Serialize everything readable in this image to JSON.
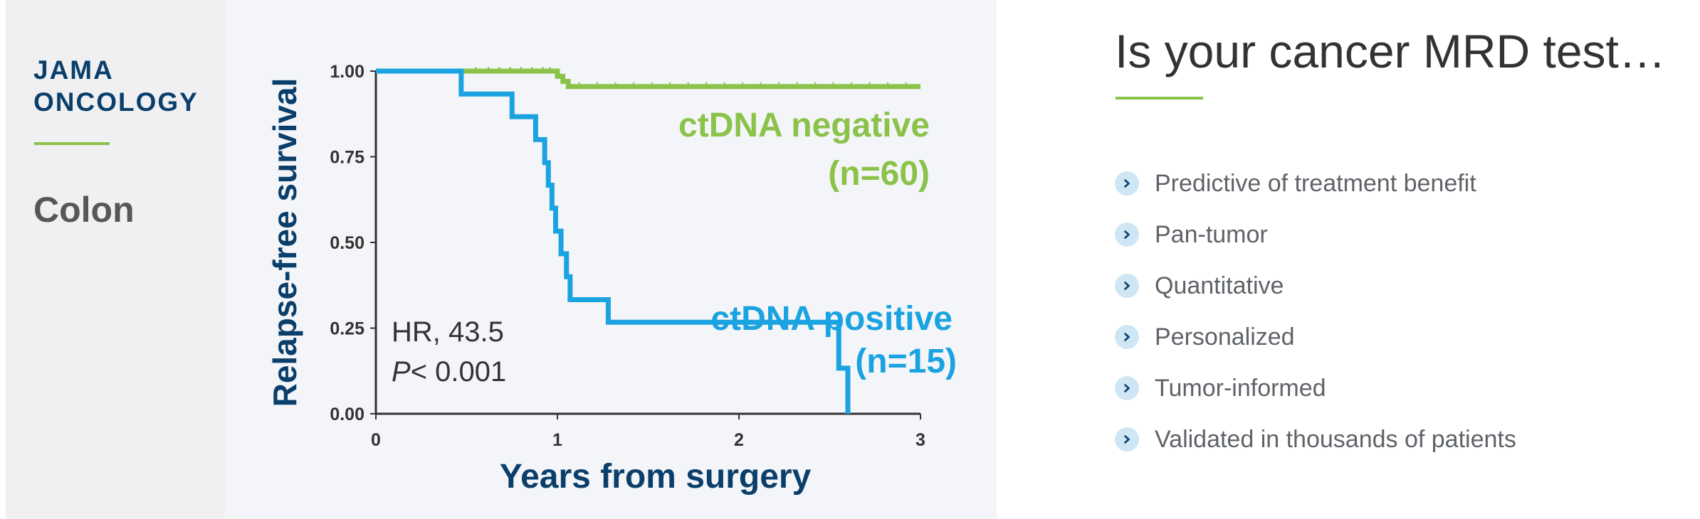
{
  "left": {
    "journal_line1": "JAMA",
    "journal_line2": "ONCOLOGY",
    "indication": "Colon"
  },
  "right": {
    "title": "Is your cancer MRD test…",
    "features": [
      "Predictive of treatment benefit",
      "Pan-tumor",
      "Quantitative",
      "Personalized",
      "Tumor-informed",
      "Validated in thousands of patients"
    ]
  },
  "colors": {
    "navy": "#0b3f6b",
    "green": "#8bc34a",
    "blue": "#1aa3e0",
    "chevron_bg": "#cfe6f5",
    "chevron": "#0b3f6b"
  },
  "chart_data": {
    "type": "line",
    "xlabel": "Years from surgery",
    "ylabel": "Relapse-free survival",
    "xlim": [
      0,
      3
    ],
    "ylim": [
      0,
      1
    ],
    "xticks": [
      0,
      1,
      2,
      3
    ],
    "yticks": [
      0.0,
      0.25,
      0.5,
      0.75,
      1.0
    ],
    "ytick_labels": [
      "0.00",
      "0.25",
      "0.50",
      "0.75",
      "1.00"
    ],
    "grid": false,
    "series": [
      {
        "name": "ctDNA negative",
        "n_label": "(n=60)",
        "color": "#8bc34a",
        "step_x": [
          0,
          1.0,
          1.03,
          1.06,
          3
        ],
        "step_y": [
          1.0,
          0.985,
          0.97,
          0.955,
          0.955
        ]
      },
      {
        "name": "ctDNA positive",
        "n_label": "(n=15)",
        "color": "#1aa3e0",
        "step_x": [
          0,
          0.47,
          0.75,
          0.88,
          0.93,
          0.95,
          0.97,
          0.99,
          1.02,
          1.05,
          1.07,
          1.28,
          2.55,
          2.6
        ],
        "step_y": [
          1.0,
          0.933,
          0.867,
          0.8,
          0.733,
          0.667,
          0.6,
          0.533,
          0.467,
          0.4,
          0.333,
          0.267,
          0.133,
          0.0
        ]
      }
    ],
    "annotations": {
      "hr_text": "HR, 43.5",
      "p_label": "P",
      "p_value": "< 0.001"
    }
  }
}
